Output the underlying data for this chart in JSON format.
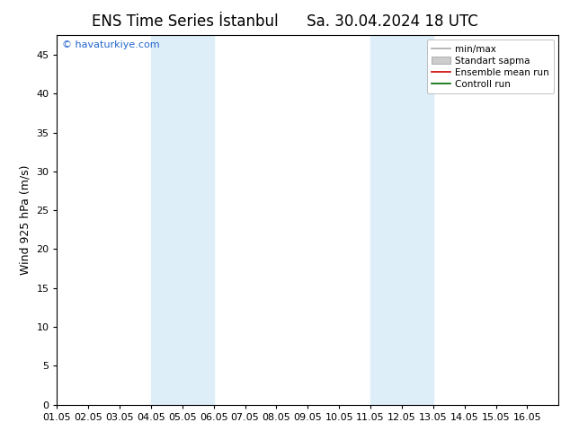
{
  "title": "ENS Time Series İstanbul",
  "title_right": "Sa. 30.04.2024 18 UTC",
  "ylabel": "Wind 925 hPa (m/s)",
  "watermark": "© havaturkiye.com",
  "xlim_left": 0,
  "xlim_right": 16,
  "ylim_bottom": 0,
  "ylim_top": 47.5,
  "yticks": [
    0,
    5,
    10,
    15,
    20,
    25,
    30,
    35,
    40,
    45
  ],
  "xtick_labels": [
    "01.05",
    "02.05",
    "03.05",
    "04.05",
    "05.05",
    "06.05",
    "07.05",
    "08.05",
    "09.05",
    "10.05",
    "11.05",
    "12.05",
    "13.05",
    "14.05",
    "15.05",
    "16.05"
  ],
  "shaded_bands": [
    {
      "x_start": 3,
      "x_end": 5,
      "color": "#ddeef8"
    },
    {
      "x_start": 10,
      "x_end": 12,
      "color": "#ddeef8"
    }
  ],
  "legend_items": [
    {
      "label": "min/max",
      "color": "#aaaaaa",
      "lw": 1.2,
      "style": "line"
    },
    {
      "label": "Standart sapma",
      "color": "#cccccc",
      "style": "fill"
    },
    {
      "label": "Ensemble mean run",
      "color": "#cc0000",
      "lw": 1.2,
      "style": "line"
    },
    {
      "label": "Controll run",
      "color": "#006600",
      "lw": 1.2,
      "style": "line"
    }
  ],
  "bg_color": "#ffffff",
  "plot_bg_color": "#ffffff",
  "watermark_color": "#2266cc",
  "title_fontsize": 12,
  "axis_label_fontsize": 9,
  "tick_fontsize": 8,
  "legend_fontsize": 7.5
}
